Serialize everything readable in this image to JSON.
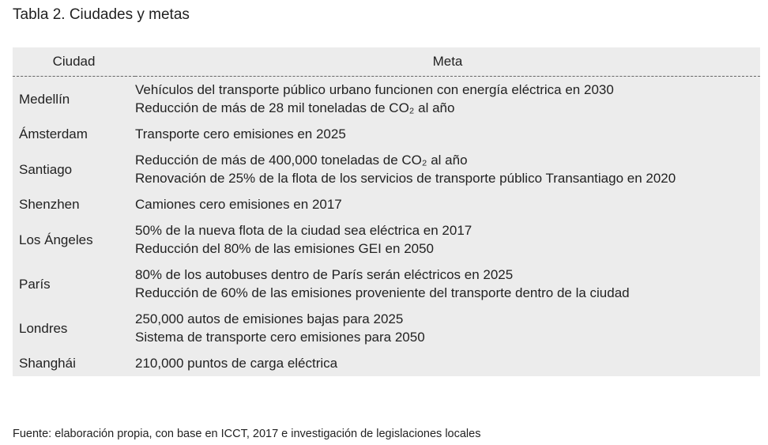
{
  "title": "Tabla 2. Ciudades y metas",
  "table": {
    "header": [
      "Ciudad",
      "Meta"
    ],
    "rows": [
      {
        "city": "Medellín",
        "goals": [
          "Vehículos del transporte público urbano funcionen con energía eléctrica en 2030",
          "Reducción de más de 28 mil toneladas de CO₂ al año"
        ]
      },
      {
        "city": "Ámsterdam",
        "goals": [
          "Transporte cero emisiones en 2025"
        ]
      },
      {
        "city": "Santiago",
        "goals": [
          "Reducción de más de 400,000 toneladas de CO₂ al año",
          "Renovación de 25% de la flota de los servicios de transporte público Transantiago en 2020"
        ]
      },
      {
        "city": "Shenzhen",
        "goals": [
          "Camiones cero emisiones en 2017"
        ]
      },
      {
        "city": "Los Ángeles",
        "goals": [
          "50% de la nueva flota de la ciudad sea eléctrica en 2017",
          "Reducción del 80% de las emisiones GEI en 2050"
        ]
      },
      {
        "city": "París",
        "goals": [
          "80% de los autobuses dentro de París serán eléctricos en 2025",
          "Reducción de 60% de las emisiones proveniente del transporte dentro de la ciudad"
        ]
      },
      {
        "city": "Londres",
        "goals": [
          "250,000 autos de emisiones bajas para 2025",
          "Sistema de transporte cero emisiones para 2050"
        ]
      },
      {
        "city": "Shanghái",
        "goals": [
          "210,000 puntos de carga eléctrica"
        ]
      }
    ]
  },
  "footnote": "Fuente: elaboración propia, con base en ICCT, 2017 e investigación de legislaciones locales"
}
